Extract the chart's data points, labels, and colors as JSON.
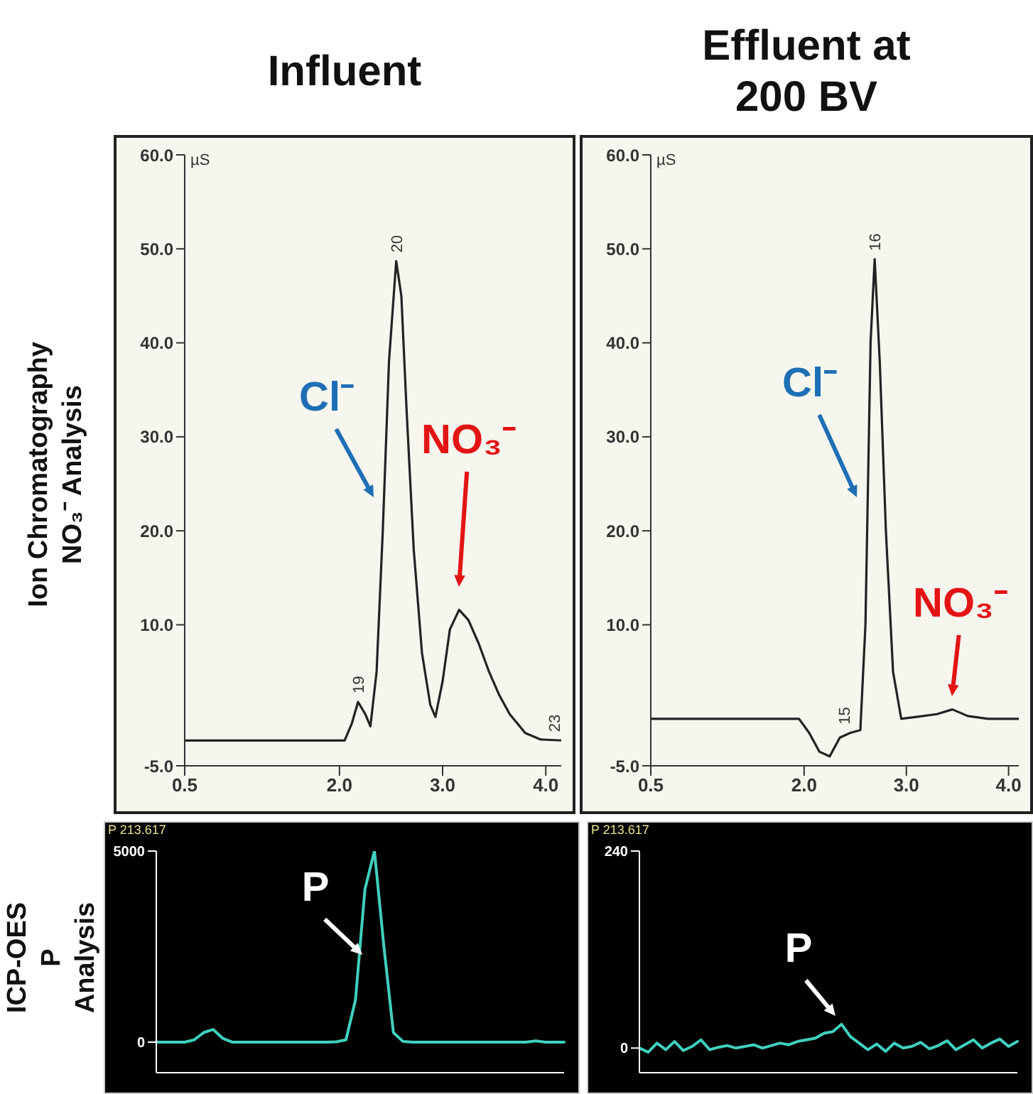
{
  "chart_data": [
    {
      "type": "line",
      "title": "Influent",
      "ylabel": "Ion Chromatography NO₃⁻ Analysis",
      "xlim": [
        0.5,
        4.15
      ],
      "ylim": [
        -5,
        60
      ],
      "xticks": [
        {
          "value": 0.5,
          "label": "0.5"
        },
        {
          "value": 2,
          "label": "2.0"
        },
        {
          "value": 3,
          "label": "3.0"
        },
        {
          "value": 4,
          "label": "4.0"
        }
      ],
      "yticks": [
        {
          "value": -5,
          "label": "-5.0"
        },
        {
          "value": 10,
          "label": "10.0"
        },
        {
          "value": 20,
          "label": "20.0"
        },
        {
          "value": 30,
          "label": "30.0"
        },
        {
          "value": 40,
          "label": "40.0"
        },
        {
          "value": 50,
          "label": "50.0"
        },
        {
          "value": 60,
          "label": "60.0"
        }
      ],
      "grid": false,
      "legend": false,
      "x": [
        0.5,
        1.0,
        1.5,
        2.05,
        2.12,
        2.18,
        2.25,
        2.3,
        2.36,
        2.42,
        2.48,
        2.55,
        2.6,
        2.65,
        2.72,
        2.8,
        2.88,
        2.93,
        3.0,
        3.07,
        3.16,
        3.25,
        3.35,
        3.45,
        3.55,
        3.65,
        3.8,
        3.95,
        4.15
      ],
      "series": [
        {
          "color": "#222222",
          "values": [
            -2.3,
            -2.3,
            -2.3,
            -2.3,
            -0.5,
            1.8,
            0.5,
            -0.8,
            5,
            20,
            38,
            48.7,
            45,
            33,
            18,
            7,
            1.5,
            0.2,
            4,
            9.5,
            11.6,
            10.5,
            8,
            5,
            2.5,
            0.5,
            -1.5,
            -2.2,
            -2.3
          ]
        }
      ],
      "annotations": [
        "µS",
        "Cl⁻",
        "NO₃⁻",
        {
          "text": "19",
          "x": 2.18,
          "y": 1.8
        },
        {
          "text": "20",
          "x": 2.55,
          "y": 48.7
        },
        {
          "text": "23",
          "x": 4.08,
          "y": -2.3
        }
      ]
    },
    {
      "type": "line",
      "title": "Effluent at 200 BV",
      "xlim": [
        0.5,
        4.1
      ],
      "ylim": [
        -5,
        60
      ],
      "xticks": [
        {
          "value": 0.5,
          "label": "0.5"
        },
        {
          "value": 2,
          "label": "2.0"
        },
        {
          "value": 3,
          "label": "3.0"
        },
        {
          "value": 4,
          "label": "4.0"
        }
      ],
      "yticks": [
        {
          "value": -5,
          "label": "-5.0"
        },
        {
          "value": 10,
          "label": "10.0"
        },
        {
          "value": 20,
          "label": "20.0"
        },
        {
          "value": 30,
          "label": "30.0"
        },
        {
          "value": 40,
          "label": "40.0"
        },
        {
          "value": 50,
          "label": "50.0"
        },
        {
          "value": 60,
          "label": "60.0"
        }
      ],
      "grid": false,
      "legend": false,
      "x": [
        0.5,
        1.0,
        1.5,
        1.95,
        2.05,
        2.15,
        2.25,
        2.35,
        2.45,
        2.55,
        2.6,
        2.65,
        2.69,
        2.74,
        2.8,
        2.87,
        2.95,
        3.1,
        3.3,
        3.45,
        3.6,
        3.8,
        4.1
      ],
      "series": [
        {
          "color": "#222222",
          "values": [
            0,
            0,
            0,
            0,
            -1.5,
            -3.5,
            -4,
            -2,
            -1.5,
            -1.2,
            10,
            40,
            48.9,
            38,
            20,
            5,
            0,
            0.2,
            0.5,
            1,
            0.3,
            0,
            0
          ]
        }
      ],
      "annotations": [
        "µS",
        "Cl⁻",
        "NO₃⁻",
        {
          "text": "15",
          "x": 2.39,
          "y": -1.5
        },
        {
          "text": "16",
          "x": 2.69,
          "y": 48.9
        }
      ]
    },
    {
      "type": "line",
      "subtitle": "P 213.617",
      "ylabel": "ICP-OES P Analysis",
      "ylim": [
        -800,
        5000
      ],
      "yticks": [
        0,
        5000
      ],
      "tick_labels": "y",
      "grid": false,
      "legend": false,
      "categories": [
        null,
        null,
        null,
        null,
        null,
        null,
        null,
        null,
        null,
        null,
        null,
        null,
        null,
        null,
        null,
        null,
        null,
        null,
        null,
        null,
        null,
        null,
        null,
        null,
        null,
        null,
        null,
        null,
        null,
        null,
        null,
        null,
        null,
        null,
        null,
        null,
        null,
        null,
        null,
        null,
        null,
        null,
        null,
        null
      ],
      "series": [
        {
          "color": "#3fd0c0",
          "values": [
            0,
            0,
            0,
            0,
            60,
            250,
            330,
            100,
            0,
            0,
            0,
            0,
            0,
            0,
            0,
            0,
            0,
            0,
            0,
            10,
            60,
            1100,
            4000,
            5000,
            2500,
            250,
            20,
            0,
            0,
            0,
            0,
            0,
            0,
            0,
            0,
            0,
            0,
            0,
            0,
            0,
            30,
            0,
            0,
            0
          ]
        }
      ],
      "annotations": [
        "P"
      ]
    },
    {
      "type": "line",
      "subtitle": "P 213.617",
      "ylim": [
        -30,
        240
      ],
      "yticks": [
        0,
        240
      ],
      "tick_labels": "y",
      "grid": false,
      "legend": false,
      "categories": [
        null,
        null,
        null,
        null,
        null,
        null,
        null,
        null,
        null,
        null,
        null,
        null,
        null,
        null,
        null,
        null,
        null,
        null,
        null,
        null,
        null,
        null,
        null,
        null,
        null,
        null,
        null,
        null,
        null,
        null,
        null,
        null,
        null,
        null,
        null,
        null,
        null,
        null,
        null,
        null,
        null,
        null,
        null,
        null
      ],
      "series": [
        {
          "color": "#3fd0c0",
          "values": [
            0,
            -5,
            6,
            -2,
            8,
            -3,
            2,
            10,
            -2,
            1,
            3,
            0,
            2,
            4,
            0,
            3,
            6,
            4,
            8,
            10,
            12,
            18,
            20,
            29,
            14,
            6,
            -2,
            5,
            -4,
            6,
            0,
            2,
            7,
            -1,
            3,
            9,
            -2,
            4,
            10,
            0,
            6,
            11,
            2,
            8
          ]
        }
      ],
      "annotations": [
        "P"
      ]
    }
  ]
}
